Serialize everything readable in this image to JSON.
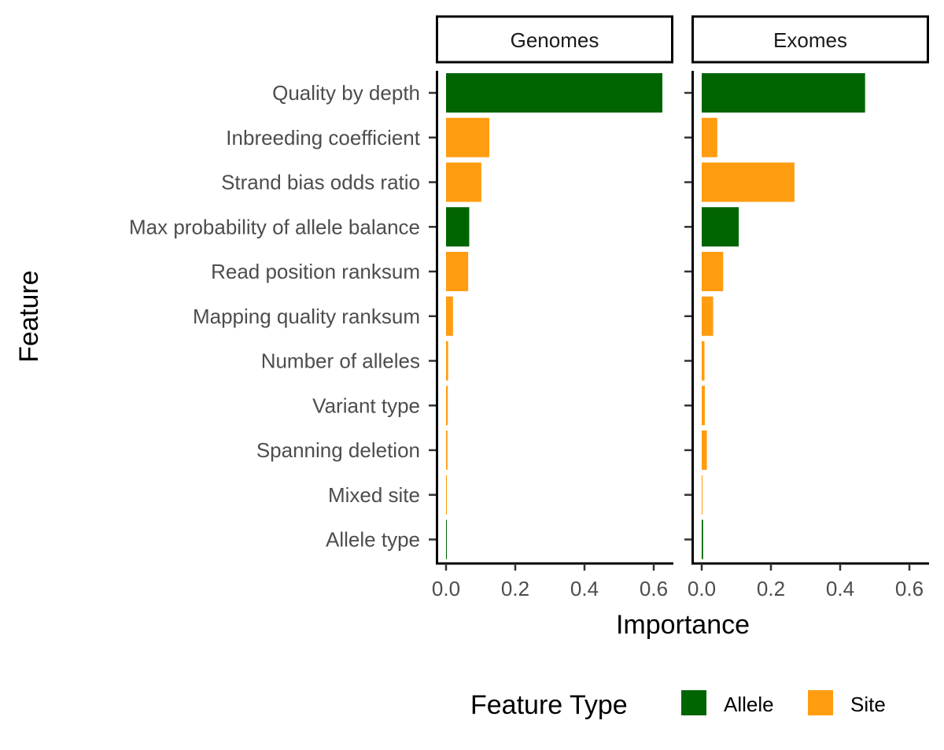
{
  "chart_data": {
    "type": "bar",
    "orientation": "horizontal",
    "categories": [
      "Quality by depth",
      "Inbreeding coefficient",
      "Strand bias odds ratio",
      "Max probability of allele balance",
      "Read position ranksum",
      "Mapping quality ranksum",
      "Number of alleles",
      "Variant type",
      "Spanning deletion",
      "Mixed site",
      "Allele type"
    ],
    "feature_types": [
      "Allele",
      "Site",
      "Site",
      "Allele",
      "Site",
      "Site",
      "Site",
      "Site",
      "Site",
      "Site",
      "Allele"
    ],
    "panels": [
      {
        "name": "Genomes",
        "values": [
          0.625,
          0.125,
          0.102,
          0.067,
          0.064,
          0.02,
          0.006,
          0.005,
          0.004,
          0.001,
          0.001
        ]
      },
      {
        "name": "Exomes",
        "values": [
          0.472,
          0.045,
          0.268,
          0.107,
          0.062,
          0.033,
          0.008,
          0.009,
          0.015,
          0.002,
          0.004
        ]
      }
    ],
    "xlabel": "Importance",
    "ylabel": "Feature",
    "xlim": [
      0,
      0.65
    ],
    "xticks": [
      "0.0",
      "0.2",
      "0.4",
      "0.6"
    ],
    "grid": false,
    "legend": {
      "title": "Feature Type",
      "position": "bottom",
      "entries": [
        {
          "label": "Allele",
          "color": "#006400"
        },
        {
          "label": "Site",
          "color": "#ff9c0f"
        }
      ]
    },
    "colors": {
      "Allele": "#006400",
      "Site": "#ff9c0f"
    }
  }
}
